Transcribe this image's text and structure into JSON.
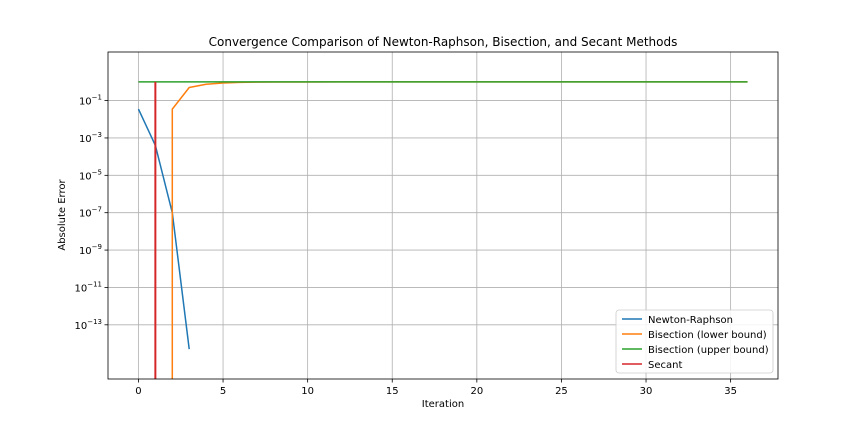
{
  "chart_data": {
    "type": "line",
    "title": "Convergence Comparison of Newton-Raphson, Bisection, and Secant Methods",
    "xlabel": "Iteration",
    "ylabel": "Absolute Error",
    "yscale": "log",
    "xlim": [
      -1.8,
      37.8
    ],
    "ylim_exp": [
      -15.9,
      1.6
    ],
    "xticks": [
      0,
      5,
      10,
      15,
      20,
      25,
      30,
      35
    ],
    "yticks_exp": [
      -13,
      -11,
      -9,
      -7,
      -5,
      -3,
      -1
    ],
    "grid": true,
    "legend_position": "lower-right",
    "series": [
      {
        "name": "Newton-Raphson",
        "color": "#1f77b4",
        "x": [
          0,
          1,
          2,
          3
        ],
        "y": [
          0.035,
          0.0004,
          1e-07,
          5e-15
        ]
      },
      {
        "name": "Bisection (lower bound)",
        "color": "#ff7f0e",
        "x": [
          2,
          2,
          3,
          4,
          5,
          6,
          7,
          8,
          9,
          10,
          12,
          14,
          16,
          18,
          20,
          22,
          24,
          26,
          28,
          30,
          32,
          34,
          36
        ],
        "y": [
          1e-16,
          0.035,
          0.5,
          0.75,
          0.875,
          0.94,
          0.97,
          0.985,
          0.99,
          0.995,
          1,
          1,
          1,
          1,
          1,
          1,
          1,
          1,
          1,
          1,
          1,
          1,
          1
        ]
      },
      {
        "name": "Bisection (upper bound)",
        "color": "#2ca02c",
        "x": [
          0,
          4,
          8,
          12,
          16,
          20,
          24,
          28,
          32,
          36
        ],
        "y": [
          1,
          1,
          1,
          1,
          1,
          1,
          1,
          1,
          1,
          1
        ]
      },
      {
        "name": "Secant",
        "color": "#d62728",
        "x": [
          1,
          1
        ],
        "y": [
          1e-16,
          1
        ]
      }
    ]
  }
}
